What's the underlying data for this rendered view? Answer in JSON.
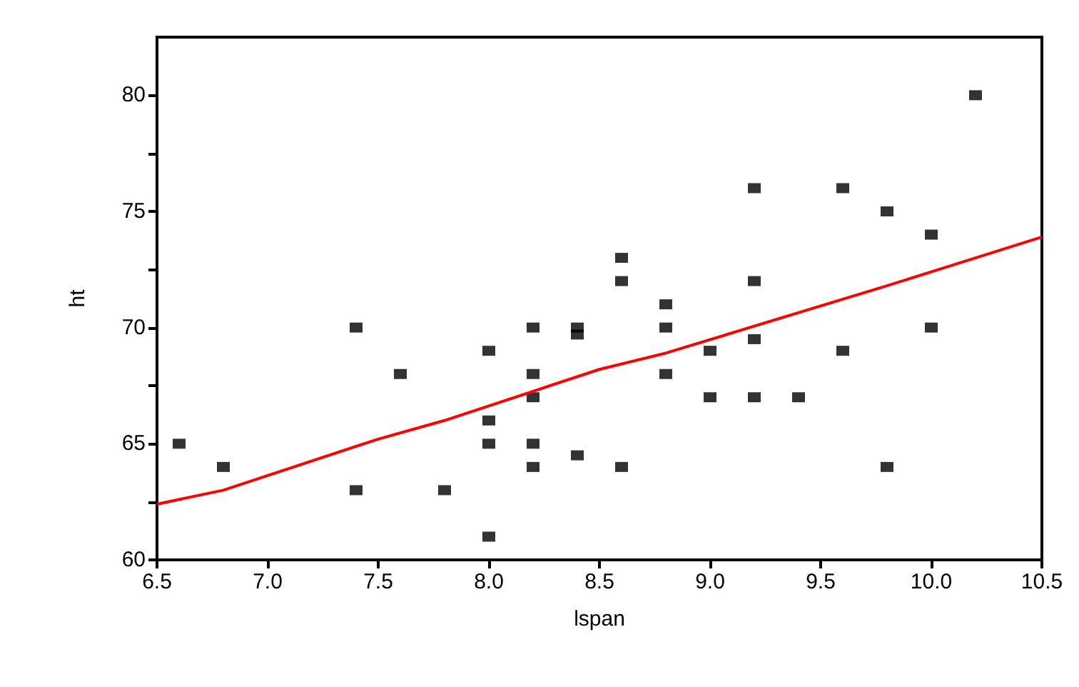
{
  "chart_data": {
    "type": "scatter",
    "xlabel": "lspan",
    "ylabel": "ht",
    "xlim": [
      6.5,
      10.5
    ],
    "ylim": [
      60,
      82.5
    ],
    "xticks": [
      {
        "value": 6.5,
        "label": "6.5"
      },
      {
        "value": 7,
        "label": "7.0"
      },
      {
        "value": 7.5,
        "label": "7.5"
      },
      {
        "value": 8,
        "label": "8.0"
      },
      {
        "value": 8.5,
        "label": "8.5"
      },
      {
        "value": 9,
        "label": "9.0"
      },
      {
        "value": 9.5,
        "label": "9.5"
      },
      {
        "value": 10,
        "label": "10.0"
      },
      {
        "value": 10.5,
        "label": "10.5"
      }
    ],
    "yticks": [
      60,
      {
        "value": 62.5,
        "label": null
      },
      65,
      {
        "value": 67.5,
        "label": null
      },
      70,
      {
        "value": 72.5,
        "label": null
      },
      75,
      {
        "value": 77.5,
        "label": null
      },
      80
    ],
    "grid": false,
    "marker": "square",
    "series": [
      {
        "color": "#000000",
        "x": [
          6.6,
          6.8,
          7.4,
          7.4,
          7.6,
          7.8,
          8.0,
          8.0,
          8.0,
          8.0,
          8.2,
          8.2,
          8.2,
          8.2,
          8.2,
          8.4,
          8.4,
          8.4,
          8.6,
          8.6,
          8.6,
          8.8,
          8.8,
          8.8,
          9.0,
          9.0,
          9.2,
          9.2,
          9.2,
          9.2,
          9.4,
          9.6,
          9.6,
          9.8,
          9.8,
          10.0,
          10.0,
          10.2
        ],
        "values": [
          65,
          64,
          70,
          63,
          68,
          63,
          69,
          66,
          65,
          61,
          70,
          68,
          67,
          65,
          64,
          70,
          69.7,
          64.5,
          73,
          72,
          64,
          71,
          70,
          68,
          69,
          67,
          76,
          72,
          69.5,
          67,
          67,
          76,
          69,
          75,
          64,
          74,
          70,
          80
        ]
      },
      {
        "type": "line",
        "color": "#ff0000",
        "marker": "none",
        "x": [
          6.5,
          6.8,
          7.5,
          7.8,
          8.5,
          8.8,
          9.8,
          10.0,
          10.5
        ],
        "values": [
          62.4,
          63.0,
          65.2,
          66.0,
          68.2,
          68.9,
          71.8,
          72.4,
          73.9
        ]
      }
    ]
  }
}
